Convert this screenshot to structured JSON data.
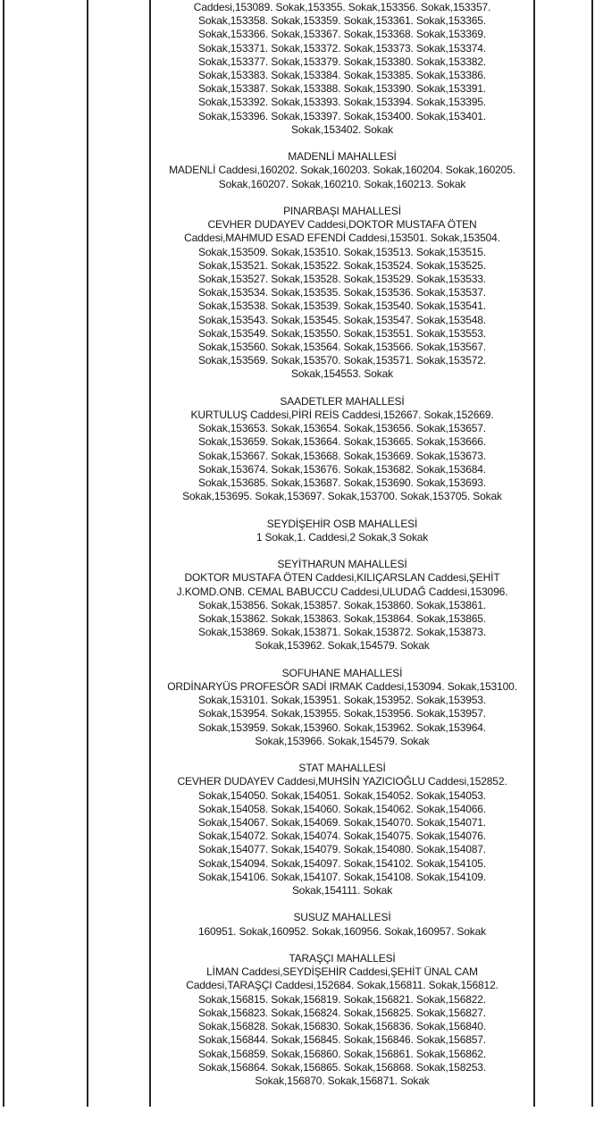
{
  "document": {
    "description_label": "street index table page",
    "text_color": "#161616",
    "line_color": "#262626"
  },
  "sections": [
    {
      "header": "",
      "lines": [
        "Caddesi,153089. Sokak,153355. Sokak,153356. Sokak,153357.",
        "Sokak,153358. Sokak,153359. Sokak,153361. Sokak,153365.",
        "Sokak,153366. Sokak,153367. Sokak,153368. Sokak,153369.",
        "Sokak,153371. Sokak,153372. Sokak,153373. Sokak,153374.",
        "Sokak,153377. Sokak,153379. Sokak,153380. Sokak,153382.",
        "Sokak,153383. Sokak,153384. Sokak,153385. Sokak,153386.",
        "Sokak,153387. Sokak,153388. Sokak,153390. Sokak,153391.",
        "Sokak,153392. Sokak,153393. Sokak,153394. Sokak,153395.",
        "Sokak,153396. Sokak,153397. Sokak,153400. Sokak,153401.",
        "Sokak,153402. Sokak"
      ]
    },
    {
      "header": "MADENLİ MAHALLESİ",
      "lines": [
        "MADENLİ Caddesi,160202. Sokak,160203. Sokak,160204. Sokak,160205.",
        "Sokak,160207. Sokak,160210. Sokak,160213. Sokak"
      ]
    },
    {
      "header": "PINARBAŞI MAHALLESİ",
      "lines": [
        "CEVHER DUDAYEV Caddesi,DOKTOR MUSTAFA ÖTEN",
        "Caddesi,MAHMUD ESAD EFENDİ Caddesi,153501. Sokak,153504.",
        "Sokak,153509. Sokak,153510. Sokak,153513. Sokak,153515.",
        "Sokak,153521. Sokak,153522. Sokak,153524. Sokak,153525.",
        "Sokak,153527. Sokak,153528. Sokak,153529. Sokak,153533.",
        "Sokak,153534. Sokak,153535. Sokak,153536. Sokak,153537.",
        "Sokak,153538. Sokak,153539. Sokak,153540. Sokak,153541.",
        "Sokak,153543. Sokak,153545. Sokak,153547. Sokak,153548.",
        "Sokak,153549. Sokak,153550. Sokak,153551. Sokak,153553.",
        "Sokak,153560. Sokak,153564. Sokak,153566. Sokak,153567.",
        "Sokak,153569. Sokak,153570. Sokak,153571. Sokak,153572.",
        "Sokak,154553. Sokak"
      ]
    },
    {
      "header": "SAADETLER MAHALLESİ",
      "lines": [
        "KURTULUŞ Caddesi,PİRİ REİS Caddesi,152667. Sokak,152669.",
        "Sokak,153653. Sokak,153654. Sokak,153656. Sokak,153657.",
        "Sokak,153659. Sokak,153664. Sokak,153665. Sokak,153666.",
        "Sokak,153667. Sokak,153668. Sokak,153669. Sokak,153673.",
        "Sokak,153674. Sokak,153676. Sokak,153682. Sokak,153684.",
        "Sokak,153685. Sokak,153687. Sokak,153690. Sokak,153693.",
        "Sokak,153695. Sokak,153697. Sokak,153700. Sokak,153705. Sokak"
      ]
    },
    {
      "header": "SEYDİŞEHİR OSB MAHALLESİ",
      "lines": [
        "1 Sokak,1. Caddesi,2 Sokak,3 Sokak"
      ]
    },
    {
      "header": "SEYİTHARUN MAHALLESİ",
      "lines": [
        "DOKTOR MUSTAFA ÖTEN Caddesi,KILIÇARSLAN Caddesi,ŞEHİT",
        "J.KOMD.ONB. CEMAL BABUCCU Caddesi,ULUDAĞ Caddesi,153096.",
        "Sokak,153856. Sokak,153857. Sokak,153860. Sokak,153861.",
        "Sokak,153862. Sokak,153863. Sokak,153864. Sokak,153865.",
        "Sokak,153869. Sokak,153871. Sokak,153872. Sokak,153873.",
        "Sokak,153962. Sokak,154579. Sokak"
      ]
    },
    {
      "header": "SOFUHANE MAHALLESİ",
      "lines": [
        "ORDİNARYÜS PROFESÖR SADİ IRMAK Caddesi,153094. Sokak,153100.",
        "Sokak,153101. Sokak,153951. Sokak,153952. Sokak,153953.",
        "Sokak,153954. Sokak,153955. Sokak,153956. Sokak,153957.",
        "Sokak,153959. Sokak,153960. Sokak,153962. Sokak,153964.",
        "Sokak,153966. Sokak,154579. Sokak"
      ]
    },
    {
      "header": "STAT MAHALLESİ",
      "lines": [
        "CEVHER DUDAYEV Caddesi,MUHSİN YAZICIOĞLU Caddesi,152852.",
        "Sokak,154050. Sokak,154051. Sokak,154052. Sokak,154053.",
        "Sokak,154058. Sokak,154060. Sokak,154062. Sokak,154066.",
        "Sokak,154067. Sokak,154069. Sokak,154070. Sokak,154071.",
        "Sokak,154072. Sokak,154074. Sokak,154075. Sokak,154076.",
        "Sokak,154077. Sokak,154079. Sokak,154080. Sokak,154087.",
        "Sokak,154094. Sokak,154097. Sokak,154102. Sokak,154105.",
        "Sokak,154106. Sokak,154107. Sokak,154108. Sokak,154109.",
        "Sokak,154111. Sokak"
      ]
    },
    {
      "header": "SUSUZ MAHALLESİ",
      "lines": [
        "160951. Sokak,160952. Sokak,160956. Sokak,160957. Sokak"
      ]
    },
    {
      "header": "TARAŞÇI MAHALLESİ",
      "lines": [
        "LİMAN Caddesi,SEYDİŞEHİR Caddesi,ŞEHİT ÜNAL CAM",
        "Caddesi,TARAŞÇI Caddesi,152684. Sokak,156811. Sokak,156812.",
        "Sokak,156815. Sokak,156819. Sokak,156821. Sokak,156822.",
        "Sokak,156823. Sokak,156824. Sokak,156825. Sokak,156827.",
        "Sokak,156828. Sokak,156830. Sokak,156836. Sokak,156840.",
        "Sokak,156844. Sokak,156845. Sokak,156846. Sokak,156857.",
        "Sokak,156859. Sokak,156860. Sokak,156861. Sokak,156862.",
        "Sokak,156864. Sokak,156865. Sokak,156868. Sokak,158253.",
        "Sokak,156870. Sokak,156871. Sokak"
      ]
    }
  ]
}
